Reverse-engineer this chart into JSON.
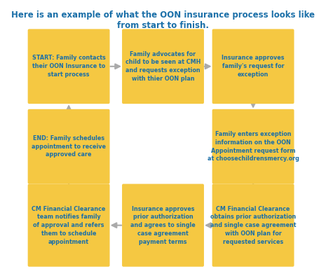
{
  "title": "Here is an example of what the OON insurance process looks like from start to finish.",
  "title_color": "#1a6fa8",
  "title_fontsize": 8.5,
  "bg_color": "#ffffff",
  "box_color": "#f5c842",
  "text_color": "#1a6fa8",
  "arrow_color": "#aaaaaa",
  "boxes": [
    {
      "id": 0,
      "row": 0,
      "col": 0,
      "text": "START: Family contacts\ntheir OON Insurance to\nstart process"
    },
    {
      "id": 1,
      "row": 0,
      "col": 1,
      "text": "Family advocates for\nchild to be seen at CMH\nand requests exception\nwith thier OON plan"
    },
    {
      "id": 2,
      "row": 0,
      "col": 2,
      "text": "Insurance approves\nfamily's request for\nexception"
    },
    {
      "id": 3,
      "row": 1,
      "col": 0,
      "text": "END: Family schedules\nappointment to receive\napproved care"
    },
    {
      "id": 4,
      "row": 1,
      "col": 2,
      "text": "Family enters exception\ninformation on the OON\nAppointment request form\nat choosechildrensmercy.org"
    },
    {
      "id": 5,
      "row": 2,
      "col": 0,
      "text": "CM Financial Clearance\nteam notifies family\nof approval and refers\nthem to schedule\nappointment"
    },
    {
      "id": 6,
      "row": 2,
      "col": 1,
      "text": "Insurance approves\nprior authorization\nand agrees to single\ncase agreement\npayment terms"
    },
    {
      "id": 7,
      "row": 2,
      "col": 2,
      "text": "CM Financial Clearance\nobtains prior authorization\nand single case agreement\nwith OON plan for\nrequested services"
    }
  ],
  "arrows": [
    {
      "from": 0,
      "to": 1,
      "direction": "right"
    },
    {
      "from": 1,
      "to": 2,
      "direction": "right"
    },
    {
      "from": 2,
      "to": 4,
      "direction": "down"
    },
    {
      "from": 4,
      "to": 7,
      "direction": "down"
    },
    {
      "from": 3,
      "to": 0,
      "direction": "up"
    },
    {
      "from": 5,
      "to": 3,
      "direction": "up"
    },
    {
      "from": 7,
      "to": 6,
      "direction": "left"
    },
    {
      "from": 6,
      "to": 5,
      "direction": "left"
    }
  ]
}
